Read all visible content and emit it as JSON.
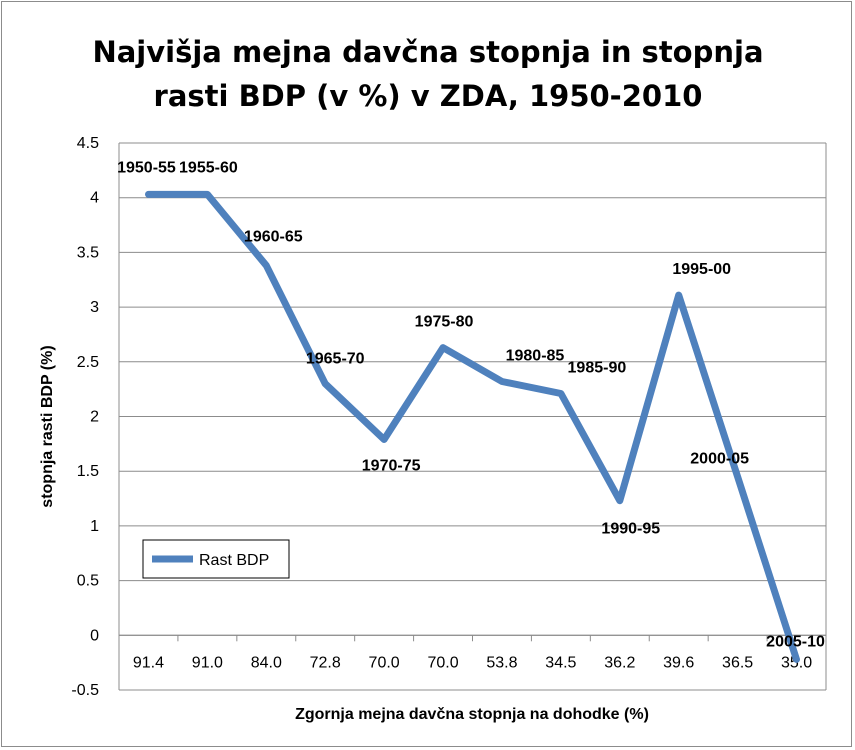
{
  "chart_data": {
    "type": "line",
    "title": [
      "Najvišja mejna davčna stopnja  in stopnja",
      "rasti BDP (v %) v ZDA, 1950-2010"
    ],
    "xlabel": "Zgornja mejna davčna stopnja na dohodke (%)",
    "ylabel": "stopnja rasti BDP (%)",
    "categories": [
      "91.4",
      "91.0",
      "84.0",
      "72.8",
      "70.0",
      "70.0",
      "53.8",
      "34.5",
      "36.2",
      "39.6",
      "36.5",
      "35.0"
    ],
    "series": [
      {
        "name": "Rast BDP",
        "color": "#4f81bd",
        "values": [
          4.03,
          4.03,
          3.38,
          2.3,
          1.79,
          2.63,
          2.32,
          2.21,
          1.23,
          3.11,
          1.45,
          -0.22
        ],
        "point_labels": [
          "1950-55",
          "1955-60",
          "1960-65",
          "1965-70",
          "1970-75",
          "1975-80",
          "1980-85",
          "1985-90",
          "1990-95",
          "1995-00",
          "2000-05",
          "2005-10"
        ]
      }
    ],
    "ylim": [
      -0.5,
      4.5
    ],
    "yticks": [
      "-0.5",
      "0",
      "0.5",
      "1",
      "1.5",
      "2",
      "2.5",
      "3",
      "3.5",
      "4",
      "4.5"
    ],
    "grid": "horizontal",
    "legend": "bottom-left"
  }
}
